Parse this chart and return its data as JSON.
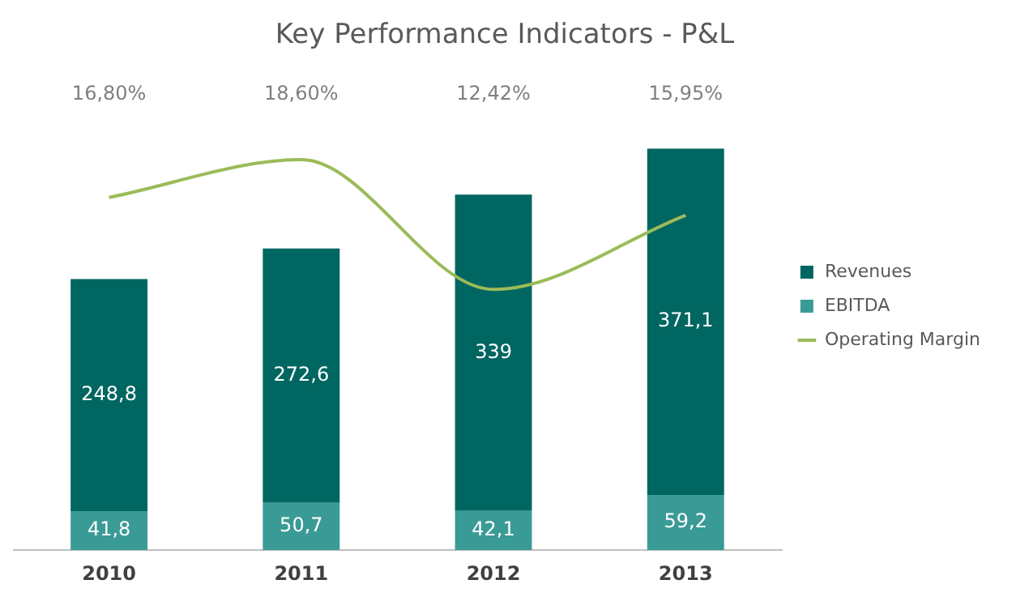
{
  "chart_data": {
    "type": "bar",
    "title": "Key Performance Indicators - P&L",
    "categories": [
      "2010",
      "2011",
      "2012",
      "2013"
    ],
    "stacked": true,
    "series": [
      {
        "name": "EBITDA",
        "color": "#3a9a96",
        "values": [
          41.8,
          50.7,
          42.1,
          59.2
        ],
        "value_labels": [
          "41,8",
          "50,7",
          "42,1",
          "59,2"
        ]
      },
      {
        "name": "Revenues",
        "color": "#006661",
        "values": [
          248.8,
          272.6,
          339,
          371.1
        ],
        "value_labels": [
          "248,8",
          "272,6",
          "339",
          "371,1"
        ]
      },
      {
        "name": "Operating Margin",
        "type": "line",
        "axis": "y2",
        "color": "#9bbb59",
        "values": [
          16.8,
          18.6,
          12.42,
          15.95
        ],
        "value_labels": [
          "16,80%",
          "18,60%",
          "12,42%",
          "15,95%"
        ]
      }
    ],
    "grid": false,
    "legend": "right"
  }
}
